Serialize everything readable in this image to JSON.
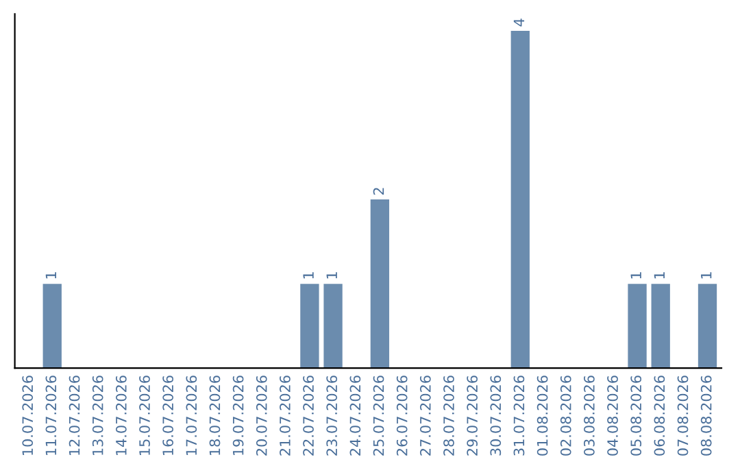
{
  "chart_data": {
    "type": "bar",
    "categories": [
      "10.07.2026",
      "11.07.2026",
      "12.07.2026",
      "13.07.2026",
      "14.07.2026",
      "15.07.2026",
      "16.07.2026",
      "17.07.2026",
      "18.07.2026",
      "19.07.2026",
      "20.07.2026",
      "21.07.2026",
      "22.07.2026",
      "23.07.2026",
      "24.07.2026",
      "25.07.2026",
      "26.07.2026",
      "27.07.2026",
      "28.07.2026",
      "29.07.2026",
      "30.07.2026",
      "31.07.2026",
      "01.08.2026",
      "02.08.2026",
      "03.08.2026",
      "04.08.2026",
      "05.08.2026",
      "06.08.2026",
      "07.08.2026",
      "08.08.2026"
    ],
    "values": [
      0,
      1,
      0,
      0,
      0,
      0,
      0,
      0,
      0,
      0,
      0,
      0,
      1,
      1,
      0,
      2,
      0,
      0,
      0,
      0,
      0,
      4,
      0,
      0,
      0,
      0,
      1,
      1,
      0,
      1
    ],
    "value_labels": [
      null,
      "1",
      null,
      null,
      null,
      null,
      null,
      null,
      null,
      null,
      null,
      null,
      "1",
      "1",
      null,
      "2",
      null,
      null,
      null,
      null,
      null,
      "4",
      null,
      null,
      null,
      null,
      "1",
      "1",
      null,
      "1"
    ],
    "color": "#6b8cae"
  }
}
